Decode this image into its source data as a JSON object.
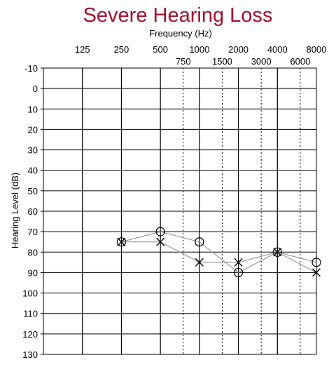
{
  "chart_data": {
    "type": "line",
    "title": "Severe Hearing Loss",
    "xlabel": "Frequency (Hz)",
    "ylabel": "Hearing Level (dB)",
    "x_scale": "log2",
    "x_ticks_major": [
      "125",
      "250",
      "500",
      "1000",
      "2000",
      "4000",
      "8000"
    ],
    "x_ticks_minor": [
      "750",
      "1500",
      "3000",
      "6000"
    ],
    "y_ticks": [
      "-10",
      "0",
      "10",
      "20",
      "30",
      "40",
      "50",
      "60",
      "70",
      "80",
      "90",
      "100",
      "110",
      "120",
      "130"
    ],
    "ylim": [
      -10,
      130
    ],
    "y_inverted": true,
    "grid": true,
    "series": [
      {
        "marker": "circle",
        "x": [
          250,
          500,
          1000,
          2000,
          4000,
          8000
        ],
        "y": [
          75,
          70,
          75,
          90,
          80,
          85
        ]
      },
      {
        "marker": "x",
        "x": [
          250,
          500,
          1000,
          2000,
          4000,
          8000
        ],
        "y": [
          75,
          75,
          85,
          85,
          80,
          90
        ]
      }
    ],
    "colors": {
      "title": "#a3102e",
      "grid": "#000000",
      "line": "#888888",
      "marker": "#000000"
    }
  }
}
